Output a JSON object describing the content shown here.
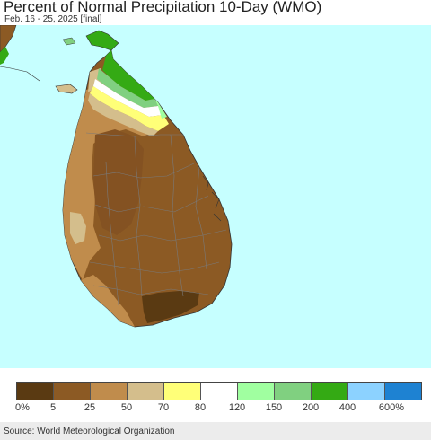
{
  "header": {
    "title": "Percent of Normal Precipitation 10-Day (WMO)",
    "subtitle": "Feb. 16 - 25, 2025 [final]"
  },
  "map": {
    "sea_color": "#c6ffff",
    "region_names": [
      "sea",
      "india-coast",
      "mannar-island",
      "jaffna-peninsula",
      "north-plain",
      "northwest-band",
      "west-coast-strip",
      "west-coast-patch",
      "south-west-band",
      "central-highlands",
      "southeast-dark",
      "north-east-coast",
      "district-borders"
    ]
  },
  "legend": {
    "colors": [
      "#5a3a12",
      "#8c5a24",
      "#c08c4c",
      "#d4be8c",
      "#ffff78",
      "#ffffff",
      "#a0ffa0",
      "#80d080",
      "#34aa14",
      "#8cd2ff",
      "#1e82d2"
    ],
    "labels": [
      "0%",
      "5",
      "25",
      "50",
      "70",
      "80",
      "120",
      "150",
      "200",
      "400",
      "600%"
    ]
  },
  "footer": {
    "source": "Source: World Meteorological Organization"
  }
}
